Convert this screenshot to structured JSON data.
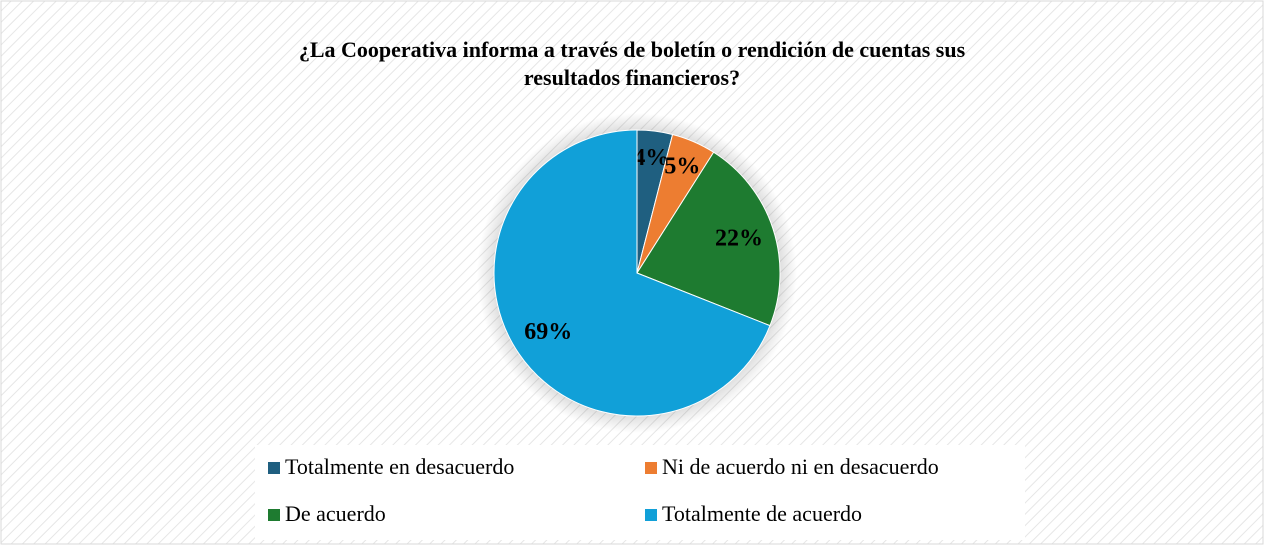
{
  "chart_data": {
    "type": "pie",
    "title": "¿La Cooperativa informa a través de boletín o rendición de cuentas sus resultados financieros?",
    "categories": [
      "Totalmente en desacuerdo",
      "Ni de acuerdo ni en desacuerdo",
      "De acuerdo",
      "Totalmente de acuerdo"
    ],
    "values": [
      4,
      5,
      22,
      69
    ],
    "value_labels": [
      "4%",
      "5%",
      "22%",
      "69%"
    ],
    "colors": [
      "#1f5f80",
      "#ed7d31",
      "#1e7b30",
      "#11a0d8"
    ],
    "legend": "bottom"
  }
}
